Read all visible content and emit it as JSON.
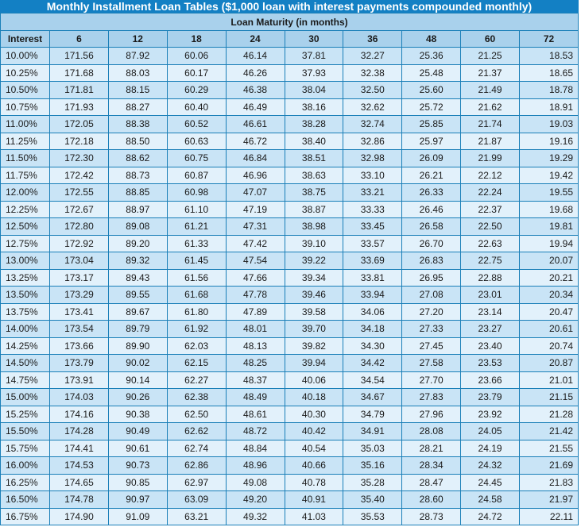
{
  "title": "Monthly Installment Loan Tables ($1,000 loan with interest payments compounded monthly)",
  "subtitle": "Loan Maturity (in months)",
  "columns": [
    "Interest",
    "6",
    "12",
    "18",
    "24",
    "30",
    "36",
    "48",
    "60",
    "72"
  ],
  "rows": [
    [
      "10.00%",
      "171.56",
      "87.92",
      "60.06",
      "46.14",
      "37.81",
      "32.27",
      "25.36",
      "21.25",
      "18.53"
    ],
    [
      "10.25%",
      "171.68",
      "88.03",
      "60.17",
      "46.26",
      "37.93",
      "32.38",
      "25.48",
      "21.37",
      "18.65"
    ],
    [
      "10.50%",
      "171.81",
      "88.15",
      "60.29",
      "46.38",
      "38.04",
      "32.50",
      "25.60",
      "21.49",
      "18.78"
    ],
    [
      "10.75%",
      "171.93",
      "88.27",
      "60.40",
      "46.49",
      "38.16",
      "32.62",
      "25.72",
      "21.62",
      "18.91"
    ],
    [
      "11.00%",
      "172.05",
      "88.38",
      "60.52",
      "46.61",
      "38.28",
      "32.74",
      "25.85",
      "21.74",
      "19.03"
    ],
    [
      "11.25%",
      "172.18",
      "88.50",
      "60.63",
      "46.72",
      "38.40",
      "32.86",
      "25.97",
      "21.87",
      "19.16"
    ],
    [
      "11.50%",
      "172.30",
      "88.62",
      "60.75",
      "46.84",
      "38.51",
      "32.98",
      "26.09",
      "21.99",
      "19.29"
    ],
    [
      "11.75%",
      "172.42",
      "88.73",
      "60.87",
      "46.96",
      "38.63",
      "33.10",
      "26.21",
      "22.12",
      "19.42"
    ],
    [
      "12.00%",
      "172.55",
      "88.85",
      "60.98",
      "47.07",
      "38.75",
      "33.21",
      "26.33",
      "22.24",
      "19.55"
    ],
    [
      "12.25%",
      "172.67",
      "88.97",
      "61.10",
      "47.19",
      "38.87",
      "33.33",
      "26.46",
      "22.37",
      "19.68"
    ],
    [
      "12.50%",
      "172.80",
      "89.08",
      "61.21",
      "47.31",
      "38.98",
      "33.45",
      "26.58",
      "22.50",
      "19.81"
    ],
    [
      "12.75%",
      "172.92",
      "89.20",
      "61.33",
      "47.42",
      "39.10",
      "33.57",
      "26.70",
      "22.63",
      "19.94"
    ],
    [
      "13.00%",
      "173.04",
      "89.32",
      "61.45",
      "47.54",
      "39.22",
      "33.69",
      "26.83",
      "22.75",
      "20.07"
    ],
    [
      "13.25%",
      "173.17",
      "89.43",
      "61.56",
      "47.66",
      "39.34",
      "33.81",
      "26.95",
      "22.88",
      "20.21"
    ],
    [
      "13.50%",
      "173.29",
      "89.55",
      "61.68",
      "47.78",
      "39.46",
      "33.94",
      "27.08",
      "23.01",
      "20.34"
    ],
    [
      "13.75%",
      "173.41",
      "89.67",
      "61.80",
      "47.89",
      "39.58",
      "34.06",
      "27.20",
      "23.14",
      "20.47"
    ],
    [
      "14.00%",
      "173.54",
      "89.79",
      "61.92",
      "48.01",
      "39.70",
      "34.18",
      "27.33",
      "23.27",
      "20.61"
    ],
    [
      "14.25%",
      "173.66",
      "89.90",
      "62.03",
      "48.13",
      "39.82",
      "34.30",
      "27.45",
      "23.40",
      "20.74"
    ],
    [
      "14.50%",
      "173.79",
      "90.02",
      "62.15",
      "48.25",
      "39.94",
      "34.42",
      "27.58",
      "23.53",
      "20.87"
    ],
    [
      "14.75%",
      "173.91",
      "90.14",
      "62.27",
      "48.37",
      "40.06",
      "34.54",
      "27.70",
      "23.66",
      "21.01"
    ],
    [
      "15.00%",
      "174.03",
      "90.26",
      "62.38",
      "48.49",
      "40.18",
      "34.67",
      "27.83",
      "23.79",
      "21.15"
    ],
    [
      "15.25%",
      "174.16",
      "90.38",
      "62.50",
      "48.61",
      "40.30",
      "34.79",
      "27.96",
      "23.92",
      "21.28"
    ],
    [
      "15.50%",
      "174.28",
      "90.49",
      "62.62",
      "48.72",
      "40.42",
      "34.91",
      "28.08",
      "24.05",
      "21.42"
    ],
    [
      "15.75%",
      "174.41",
      "90.61",
      "62.74",
      "48.84",
      "40.54",
      "35.03",
      "28.21",
      "24.19",
      "21.55"
    ],
    [
      "16.00%",
      "174.53",
      "90.73",
      "62.86",
      "48.96",
      "40.66",
      "35.16",
      "28.34",
      "24.32",
      "21.69"
    ],
    [
      "16.25%",
      "174.65",
      "90.85",
      "62.97",
      "49.08",
      "40.78",
      "35.28",
      "28.47",
      "24.45",
      "21.83"
    ],
    [
      "16.50%",
      "174.78",
      "90.97",
      "63.09",
      "49.20",
      "40.91",
      "35.40",
      "28.60",
      "24.58",
      "21.97"
    ],
    [
      "16.75%",
      "174.90",
      "91.09",
      "63.21",
      "49.32",
      "41.03",
      "35.53",
      "28.73",
      "24.72",
      "22.11"
    ]
  ],
  "colors": {
    "title_bg": "#1380c4",
    "header_bg": "#a9d1ec",
    "row_odd": "#c9e4f6",
    "row_even": "#e2f1fb",
    "border": "#1a7fb8"
  }
}
